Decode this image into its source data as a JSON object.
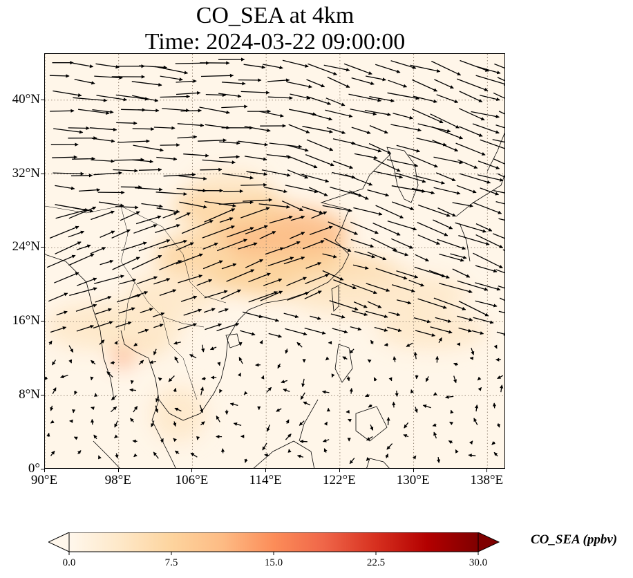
{
  "title": {
    "line1": "CO_SEA at 4km",
    "line2": "Time: 2024-03-22 09:00:00"
  },
  "map": {
    "lon_range": [
      90,
      140
    ],
    "lat_range": [
      0,
      45
    ],
    "projection": "PlateCarree",
    "gridlines": "dotted",
    "lon_ticks": [
      90,
      98,
      106,
      114,
      122,
      130,
      138
    ],
    "lat_ticks": [
      0,
      8,
      16,
      24,
      32,
      40
    ],
    "lon_tick_labels": [
      "90°E",
      "98°E",
      "106°E",
      "114°E",
      "122°E",
      "130°E",
      "138°E"
    ],
    "lat_tick_labels": [
      "0°",
      "8°N",
      "16°N",
      "24°N",
      "32°N",
      "40°N"
    ],
    "background_color": "#fff6e9",
    "coastline_color": "#000000",
    "vector_color": "#000000"
  },
  "colorbar": {
    "label": "CO_SEA (ppbv)",
    "range": [
      0.0,
      30.0
    ],
    "ticks": [
      "0.0",
      "7.5",
      "15.0",
      "22.5",
      "30.0"
    ],
    "colormap": "OrRd",
    "extend": "both",
    "colors": [
      "#fff7ec",
      "#fee8c8",
      "#fdd49e",
      "#fdbb84",
      "#fc8d59",
      "#ef6548",
      "#d7301f",
      "#b30000",
      "#7f0000"
    ]
  },
  "plumes": [
    {
      "lon": 112.0,
      "lat": 23.0,
      "value": 9,
      "rx": 10,
      "ry": 3.5
    },
    {
      "lon": 116.0,
      "lat": 25.5,
      "value": 10,
      "rx": 7,
      "ry": 3
    },
    {
      "lon": 110.0,
      "lat": 28.5,
      "value": 6,
      "rx": 6,
      "ry": 2.5
    },
    {
      "lon": 118.0,
      "lat": 21.0,
      "value": 7,
      "rx": 11,
      "ry": 2.5
    },
    {
      "lon": 126.0,
      "lat": 19.0,
      "value": 4,
      "rx": 10,
      "ry": 2.5
    },
    {
      "lon": 132.0,
      "lat": 15.0,
      "value": 3,
      "rx": 6,
      "ry": 2
    },
    {
      "lon": 98.5,
      "lat": 12.5,
      "value": 14,
      "rx": 1.2,
      "ry": 1.2
    },
    {
      "lon": 101.5,
      "lat": 13.5,
      "value": 9,
      "rx": 1.5,
      "ry": 1.2
    },
    {
      "lon": 100.0,
      "lat": 15.5,
      "value": 5,
      "rx": 5,
      "ry": 3
    },
    {
      "lon": 104.0,
      "lat": 19.0,
      "value": 5,
      "rx": 5,
      "ry": 2.5
    },
    {
      "lon": 104.5,
      "lat": 6.0,
      "value": 4,
      "rx": 3,
      "ry": 3
    },
    {
      "lon": 95.0,
      "lat": 15.5,
      "value": 3,
      "rx": 5,
      "ry": 2.5
    },
    {
      "lon": 110.0,
      "lat": 31.0,
      "value": 4,
      "rx": 4,
      "ry": 1.5
    }
  ]
}
